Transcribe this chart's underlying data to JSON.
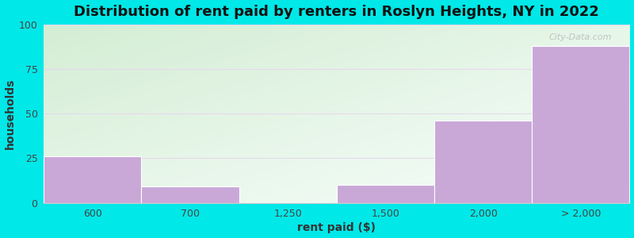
{
  "categories": [
    "600",
    "700",
    "1,250",
    "1,500",
    "2,000",
    "> 2,000"
  ],
  "values": [
    26,
    9,
    0,
    10,
    46,
    88
  ],
  "bar_color": "#c9a8d8",
  "bar_edge_color": "#c9a8d8",
  "title": "Distribution of rent paid by renters in Roslyn Heights, NY in 2022",
  "xlabel": "rent paid ($)",
  "ylabel": "households",
  "ylim": [
    0,
    100
  ],
  "yticks": [
    0,
    25,
    50,
    75,
    100
  ],
  "figure_bg": "#00e8e8",
  "grad_top_left": "#d4edd4",
  "grad_bottom_right": "#f8fffc",
  "title_fontsize": 13,
  "axis_label_fontsize": 10,
  "tick_fontsize": 9,
  "grid_color": "#e8d8ee",
  "watermark": "City-Data.com"
}
